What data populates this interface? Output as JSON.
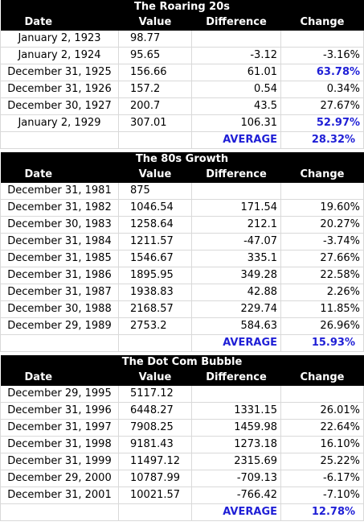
{
  "headers": {
    "date": "Date",
    "value": "Value",
    "difference": "Difference",
    "change": "Change"
  },
  "average_label": "AVERAGE",
  "highlight_color": "#1f1fd6",
  "sections": [
    {
      "title": "The Roaring 20s",
      "rows": [
        {
          "date": "January 2, 1923",
          "value": "98.77",
          "difference": "",
          "change": ""
        },
        {
          "date": "January 2, 1924",
          "value": "95.65",
          "difference": "-3.12",
          "change": "-3.16%"
        },
        {
          "date": "December 31, 1925",
          "value": "156.66",
          "difference": "61.01",
          "change": "63.78%",
          "highlight": true
        },
        {
          "date": "December 31, 1926",
          "value": "157.2",
          "difference": "0.54",
          "change": "0.34%"
        },
        {
          "date": "December 30, 1927",
          "value": "200.7",
          "difference": "43.5",
          "change": "27.67%"
        },
        {
          "date": "January 2, 1929",
          "value": "307.01",
          "difference": "106.31",
          "change": "52.97%",
          "highlight": true
        }
      ],
      "average": "28.32%"
    },
    {
      "title": "The 80s Growth",
      "rows": [
        {
          "date": "December 31, 1981",
          "value": "875",
          "difference": "",
          "change": ""
        },
        {
          "date": "December 31, 1982",
          "value": "1046.54",
          "difference": "171.54",
          "change": "19.60%"
        },
        {
          "date": "December 30, 1983",
          "value": "1258.64",
          "difference": "212.1",
          "change": "20.27%"
        },
        {
          "date": "December 31, 1984",
          "value": "1211.57",
          "difference": "-47.07",
          "change": "-3.74%"
        },
        {
          "date": "December 31, 1985",
          "value": "1546.67",
          "difference": "335.1",
          "change": "27.66%"
        },
        {
          "date": "December 31, 1986",
          "value": "1895.95",
          "difference": "349.28",
          "change": "22.58%"
        },
        {
          "date": "December 31, 1987",
          "value": "1938.83",
          "difference": "42.88",
          "change": "2.26%"
        },
        {
          "date": "December 30, 1988",
          "value": "2168.57",
          "difference": "229.74",
          "change": "11.85%"
        },
        {
          "date": "December 29, 1989",
          "value": "2753.2",
          "difference": "584.63",
          "change": "26.96%"
        }
      ],
      "average": "15.93%"
    },
    {
      "title": "The Dot Com Bubble",
      "rows": [
        {
          "date": "December 29, 1995",
          "value": "5117.12",
          "difference": "",
          "change": ""
        },
        {
          "date": "December 31, 1996",
          "value": "6448.27",
          "difference": "1331.15",
          "change": "26.01%"
        },
        {
          "date": "December 31, 1997",
          "value": "7908.25",
          "difference": "1459.98",
          "change": "22.64%"
        },
        {
          "date": "December 31, 1998",
          "value": "9181.43",
          "difference": "1273.18",
          "change": "16.10%"
        },
        {
          "date": "December 31, 1999",
          "value": "11497.12",
          "difference": "2315.69",
          "change": "25.22%"
        },
        {
          "date": "December 29, 2000",
          "value": "10787.99",
          "difference": "-709.13",
          "change": "-6.17%"
        },
        {
          "date": "December 31, 2001",
          "value": "10021.57",
          "difference": "-766.42",
          "change": "-7.10%"
        }
      ],
      "average": "12.78%"
    }
  ]
}
